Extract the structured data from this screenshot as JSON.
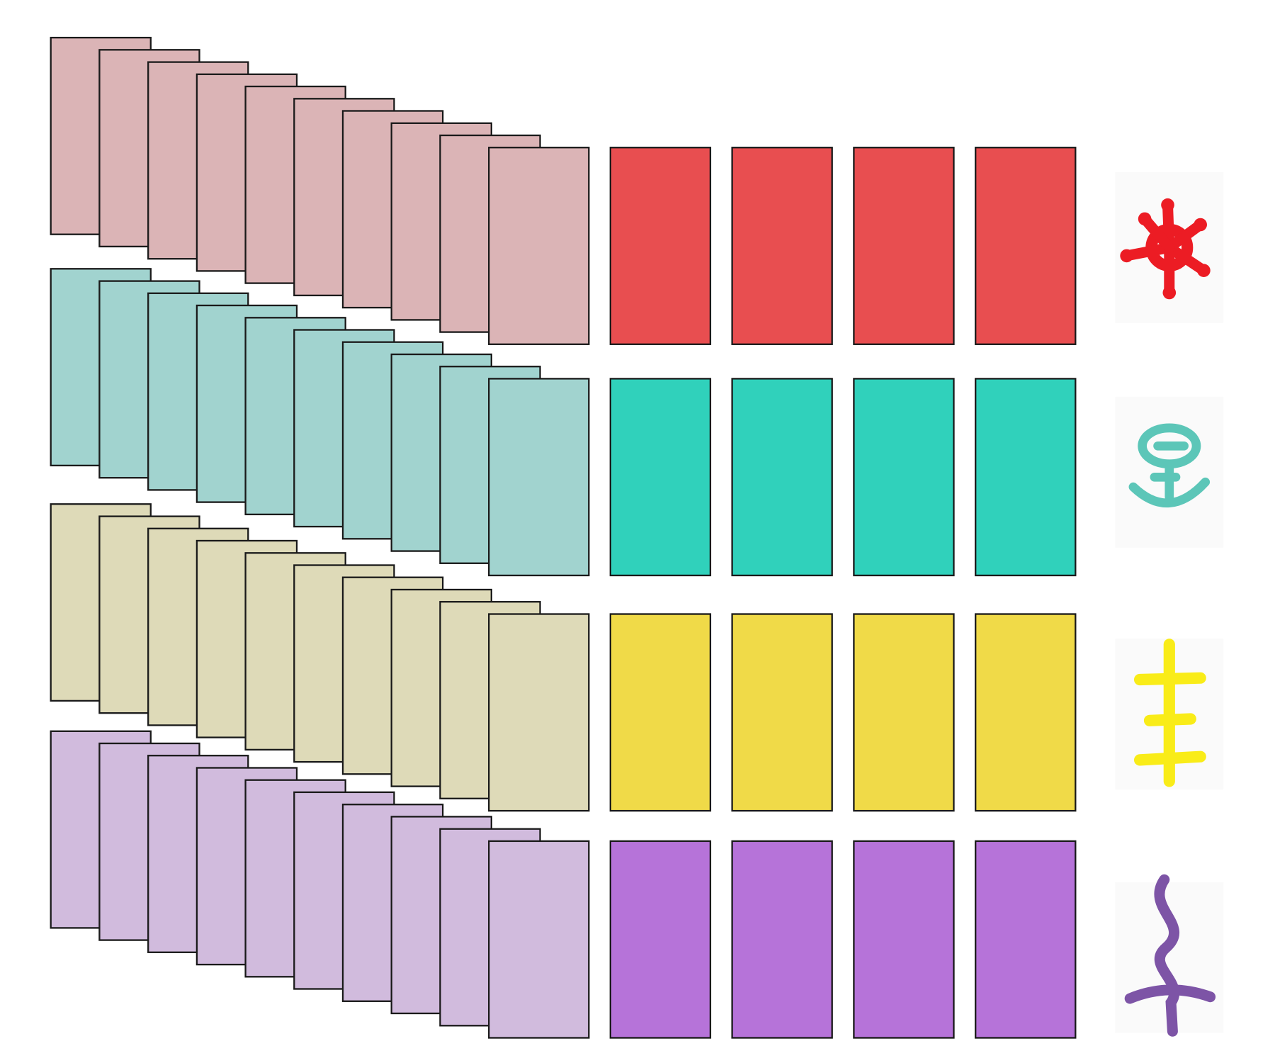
{
  "rows": [
    {
      "suit": "red",
      "symbol_icon": "sun-glyph-icon",
      "stack_color": "#dbb4b6",
      "card_color": "#e84e50",
      "symbol_color": "#ec1c24",
      "stacked_cards": 10,
      "placed_cards": 4
    },
    {
      "suit": "teal",
      "symbol_icon": "anchor-glyph-icon",
      "stack_color": "#a1d3cf",
      "card_color": "#30d1bb",
      "symbol_color": "#5cc6b8",
      "stacked_cards": 10,
      "placed_cards": 4
    },
    {
      "suit": "yellow",
      "symbol_icon": "cross-glyph-icon",
      "stack_color": "#dedab8",
      "card_color": "#f0da48",
      "symbol_color": "#f9ec18",
      "stacked_cards": 10,
      "placed_cards": 4
    },
    {
      "suit": "purple",
      "symbol_icon": "serpent-glyph-icon",
      "stack_color": "#d1bbdd",
      "card_color": "#b673d9",
      "symbol_color": "#7d54a6",
      "stacked_cards": 10,
      "placed_cards": 4
    }
  ]
}
